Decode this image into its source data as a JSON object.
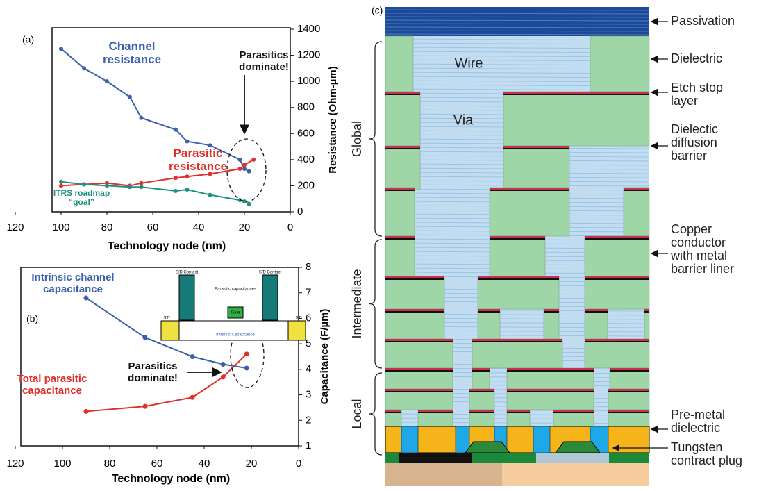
{
  "chart_data": [
    {
      "type": "line",
      "panel_label": "(a)",
      "x_label": "Technology node (nm)",
      "y_label": "Resistance (Ohm-µm)",
      "xlim": [
        120,
        0
      ],
      "xticks": [
        120,
        100,
        80,
        60,
        40,
        20,
        0
      ],
      "ylim": [
        0,
        1400
      ],
      "yticks": [
        0,
        200,
        400,
        600,
        800,
        1000,
        1200,
        1400
      ],
      "series": [
        {
          "name": "Channel resistance",
          "color": "#3a5fb0",
          "x": [
            100,
            90,
            80,
            70,
            65,
            50,
            45,
            35,
            22,
            20,
            18
          ],
          "values": [
            1250,
            1100,
            1000,
            880,
            720,
            630,
            540,
            510,
            400,
            330,
            310
          ]
        },
        {
          "name": "Parasitic resistance",
          "color": "#e0302a",
          "x": [
            100,
            90,
            80,
            70,
            65,
            50,
            45,
            35,
            22,
            20,
            16
          ],
          "values": [
            200,
            210,
            220,
            200,
            220,
            260,
            270,
            290,
            330,
            360,
            400
          ]
        },
        {
          "name": "ITRS roadmap “goal”",
          "color": "#1e9080",
          "x": [
            100,
            90,
            80,
            70,
            65,
            50,
            45,
            35,
            22,
            20,
            18
          ],
          "values": [
            230,
            210,
            200,
            190,
            190,
            160,
            170,
            130,
            90,
            80,
            60
          ]
        }
      ],
      "annotation": "Parasitics dominate!"
    },
    {
      "type": "line",
      "panel_label": "(b)",
      "x_label": "Technology node (nm)",
      "y_label": "Capacitance (F/µm)",
      "xlim": [
        120,
        0
      ],
      "xticks": [
        120,
        100,
        80,
        60,
        40,
        20,
        0
      ],
      "ylim": [
        1,
        8
      ],
      "yticks": [
        1,
        2,
        3,
        4,
        5,
        6,
        7,
        8
      ],
      "series": [
        {
          "name": "Intrinsic channel capacitance",
          "color": "#3a5fb0",
          "x": [
            90,
            65,
            45,
            32,
            22
          ],
          "values": [
            6.8,
            5.25,
            4.5,
            4.2,
            4.05
          ]
        },
        {
          "name": "Total parasitic capacitance",
          "color": "#e0302a",
          "x": [
            90,
            65,
            45,
            32,
            22
          ],
          "values": [
            2.35,
            2.55,
            2.9,
            3.7,
            4.6
          ]
        }
      ],
      "annotation": "Parasitics dominate!",
      "inset_labels": [
        "S/D Contact",
        "S/D Contact",
        "Parasitic capacitances",
        "Gate",
        "STI",
        "STI",
        "Intrinsic Capacitance"
      ]
    }
  ],
  "diagram": {
    "panel_label": "(c)",
    "levels": [
      "Global",
      "Intermediate",
      "Local"
    ],
    "inner_labels": [
      "Wire",
      "Via"
    ],
    "callouts": [
      "Passivation",
      "Dielectric",
      "Etch stop layer",
      "Dielectic diffusion barrier",
      "Copper conductor with metal barrier liner",
      "Pre-metal dielectric",
      "Tungsten contract plug"
    ]
  }
}
